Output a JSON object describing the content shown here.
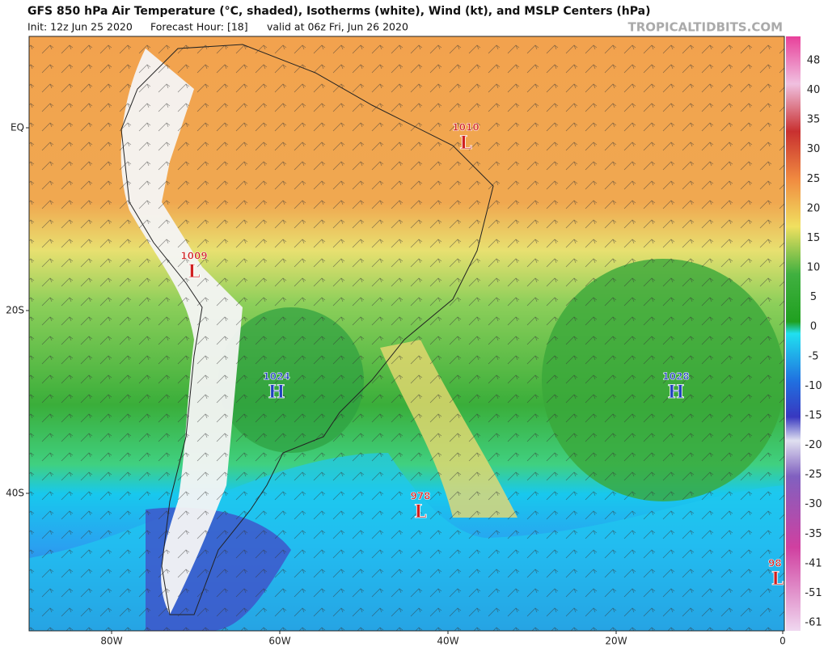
{
  "header": {
    "title": "GFS 850 hPa Air Temperature (°C, shaded), Isotherms (white), Wind (kt), and MSLP Centers (hPa)",
    "init": "Init: 12z Jun 25 2020",
    "forecast_hour": "Forecast Hour: [18]",
    "valid": "valid at 06z Fri, Jun 26 2020",
    "source": "TROPICALTIDBITS.COM"
  },
  "map": {
    "lat_labels": [
      "EQ",
      "20S",
      "40S"
    ],
    "lon_labels": [
      "80W",
      "60W",
      "40W",
      "20W",
      "0"
    ],
    "pressure_centers": [
      {
        "value": "1010",
        "symbol": "L"
      },
      {
        "value": "1009",
        "symbol": "L"
      },
      {
        "value": "1024",
        "symbol": "H"
      },
      {
        "value": "1028",
        "symbol": "H"
      },
      {
        "value": "978",
        "symbol": "L"
      },
      {
        "value": "98",
        "symbol": "L"
      }
    ],
    "colorbar": {
      "labels": [
        48,
        40,
        35,
        30,
        25,
        20,
        15,
        10,
        5,
        0,
        -5,
        -10,
        -15,
        -20,
        -25,
        -30,
        -35,
        -41,
        -51,
        -61
      ]
    }
  }
}
